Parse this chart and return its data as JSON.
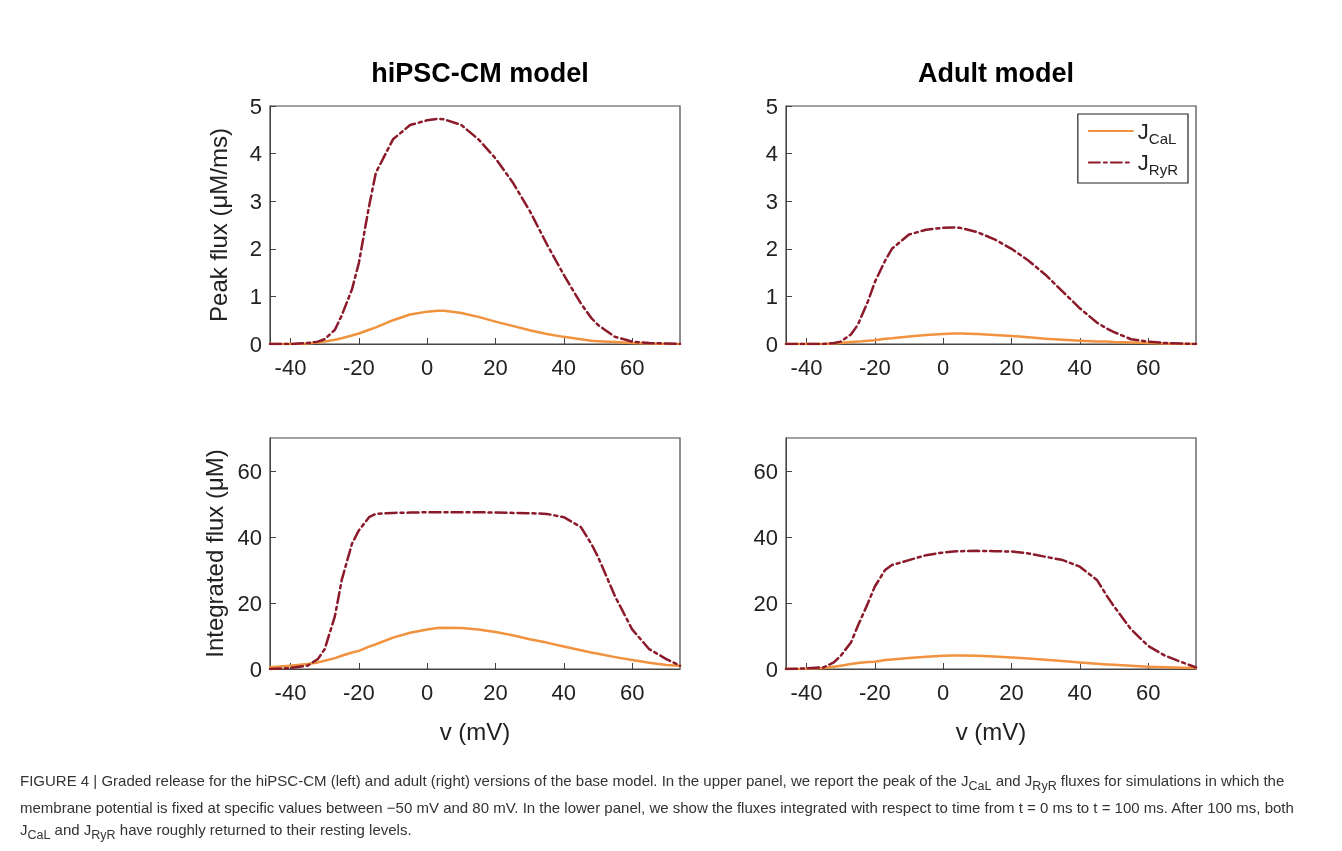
{
  "chart_data": [
    {
      "type": "line",
      "title": "hiPSC-CM model",
      "ylabel": "Peak flux (μM/ms)",
      "xlim": [
        -46,
        74
      ],
      "xticks": [
        -40,
        -20,
        0,
        20,
        40,
        60
      ],
      "ylim": [
        0,
        5
      ],
      "yticks": [
        0,
        1,
        2,
        3,
        4,
        5
      ],
      "grid": false,
      "marker": "none",
      "x": [
        -46,
        -40,
        -35,
        -32,
        -30,
        -27,
        -25,
        -22,
        -20,
        -17,
        -15,
        -10,
        -5,
        0,
        3,
        5,
        10,
        15,
        20,
        25,
        30,
        35,
        40,
        45,
        48,
        50,
        55,
        60,
        65,
        70,
        74
      ],
      "series": [
        {
          "color": "#f0923e",
          "line_style": "solid",
          "values": [
            0,
            0,
            0.01,
            0.03,
            0.05,
            0.09,
            0.12,
            0.18,
            0.22,
            0.3,
            0.35,
            0.5,
            0.62,
            0.68,
            0.7,
            0.7,
            0.65,
            0.57,
            0.47,
            0.38,
            0.29,
            0.21,
            0.15,
            0.1,
            0.07,
            0.06,
            0.04,
            0.02,
            0.01,
            0,
            0
          ]
        },
        {
          "color": "#8b1a2b",
          "line_style": "dashed",
          "values": [
            0,
            0,
            0.02,
            0.05,
            0.1,
            0.3,
            0.6,
            1.15,
            1.7,
            2.9,
            3.6,
            4.3,
            4.6,
            4.7,
            4.73,
            4.72,
            4.6,
            4.3,
            3.9,
            3.4,
            2.8,
            2.1,
            1.45,
            0.85,
            0.55,
            0.4,
            0.15,
            0.05,
            0.02,
            0.01,
            0
          ]
        }
      ]
    },
    {
      "type": "line",
      "title": "Adult model",
      "xlim": [
        -46,
        74
      ],
      "xticks": [
        -40,
        -20,
        0,
        20,
        40,
        60
      ],
      "ylim": [
        0,
        5
      ],
      "yticks": [
        0,
        1,
        2,
        3,
        4,
        5
      ],
      "grid": false,
      "marker": "none",
      "legend": "top right",
      "x": [
        -46,
        -40,
        -35,
        -32,
        -30,
        -27,
        -25,
        -22,
        -20,
        -17,
        -15,
        -10,
        -5,
        0,
        3,
        5,
        10,
        15,
        20,
        25,
        30,
        35,
        40,
        45,
        48,
        50,
        55,
        60,
        65,
        70,
        74
      ],
      "series": [
        {
          "name": "J$_{CaL}$",
          "color": "#f0923e",
          "line_style": "solid",
          "values": [
            0,
            0,
            0,
            0.01,
            0.02,
            0.04,
            0.05,
            0.07,
            0.08,
            0.11,
            0.12,
            0.16,
            0.19,
            0.21,
            0.22,
            0.22,
            0.21,
            0.19,
            0.17,
            0.14,
            0.11,
            0.09,
            0.07,
            0.05,
            0.05,
            0.04,
            0.03,
            0.02,
            0.01,
            0,
            0
          ]
        },
        {
          "name": "J$_{RyR}$",
          "color": "#8b1a2b",
          "line_style": "dashed",
          "values": [
            0,
            0,
            0,
            0.02,
            0.05,
            0.2,
            0.4,
            0.9,
            1.3,
            1.75,
            2.0,
            2.3,
            2.4,
            2.44,
            2.45,
            2.44,
            2.35,
            2.2,
            2.0,
            1.75,
            1.45,
            1.1,
            0.75,
            0.45,
            0.32,
            0.25,
            0.1,
            0.05,
            0.02,
            0.01,
            0
          ]
        }
      ]
    },
    {
      "type": "line",
      "xlabel": "v (mV)",
      "ylabel": "Integrated flux (μM)",
      "xlim": [
        -46,
        74
      ],
      "xticks": [
        -40,
        -20,
        0,
        20,
        40,
        60
      ],
      "ylim": [
        0,
        70
      ],
      "yticks": [
        0,
        20,
        40,
        60
      ],
      "grid": false,
      "marker": "none",
      "x": [
        -46,
        -40,
        -35,
        -32,
        -30,
        -27,
        -25,
        -22,
        -20,
        -17,
        -15,
        -10,
        -5,
        0,
        3,
        5,
        10,
        15,
        20,
        25,
        30,
        35,
        40,
        45,
        48,
        50,
        55,
        60,
        65,
        70,
        74
      ],
      "series": [
        {
          "color": "#f0923e",
          "line_style": "solid",
          "values": [
            0.5,
            1,
            1.5,
            2,
            2.5,
            3.3,
            4,
            5,
            5.5,
            6.8,
            7.5,
            9.5,
            11,
            12,
            12.4,
            12.5,
            12.4,
            12,
            11.2,
            10.2,
            9,
            8,
            6.8,
            5.7,
            5,
            4.6,
            3.6,
            2.7,
            1.9,
            1.2,
            1
          ]
        },
        {
          "color": "#8b1a2b",
          "line_style": "dashed",
          "values": [
            0,
            0.3,
            1,
            3,
            6,
            16,
            27,
            38,
            42,
            46,
            47,
            47.3,
            47.4,
            47.5,
            47.5,
            47.5,
            47.5,
            47.5,
            47.4,
            47.3,
            47.2,
            47,
            46,
            43,
            38,
            34,
            22,
            12,
            6,
            3,
            1
          ]
        }
      ]
    },
    {
      "type": "line",
      "xlabel": "v (mV)",
      "xlim": [
        -46,
        74
      ],
      "xticks": [
        -40,
        -20,
        0,
        20,
        40,
        60
      ],
      "ylim": [
        0,
        70
      ],
      "yticks": [
        0,
        20,
        40,
        60
      ],
      "grid": false,
      "marker": "none",
      "annotations": [
        "FIGURE 4 | Graded release for the hiPSC-CM (left) and adult (right) versions of the base model. In the upper panel, we report the peak of the J$_{CaL}$ and J$_{RyR}$ fluxes for simulations in which the membrane potential is fixed at specific values between −50 mV and 80 mV. In the lower panel, we show the fluxes integrated with respect to time from t = 0 ms to t = 100 ms. After 100 ms, both J$_{CaL}$ and J$_{RyR}$ have roughly returned to their resting levels."
      ],
      "x": [
        -46,
        -40,
        -35,
        -32,
        -30,
        -27,
        -25,
        -22,
        -20,
        -17,
        -15,
        -10,
        -5,
        0,
        3,
        5,
        10,
        15,
        20,
        25,
        30,
        35,
        40,
        45,
        48,
        50,
        55,
        60,
        65,
        70,
        74
      ],
      "series": [
        {
          "color": "#f0923e",
          "line_style": "solid",
          "values": [
            0,
            0.1,
            0.3,
            0.7,
            1,
            1.5,
            1.8,
            2.1,
            2.2,
            2.7,
            2.9,
            3.3,
            3.7,
            4,
            4.1,
            4.1,
            4,
            3.8,
            3.5,
            3.2,
            2.8,
            2.4,
            2,
            1.6,
            1.4,
            1.3,
            1,
            0.7,
            0.5,
            0.4,
            0.3
          ]
        },
        {
          "color": "#8b1a2b",
          "line_style": "dashed",
          "values": [
            0,
            0.2,
            0.5,
            2,
            4,
            8,
            13,
            20,
            25,
            30,
            31.5,
            33,
            34.5,
            35.3,
            35.6,
            35.7,
            35.8,
            35.7,
            35.6,
            35,
            34,
            33,
            31,
            27,
            22,
            19,
            12,
            7,
            4,
            2,
            0.5
          ]
        }
      ]
    }
  ]
}
